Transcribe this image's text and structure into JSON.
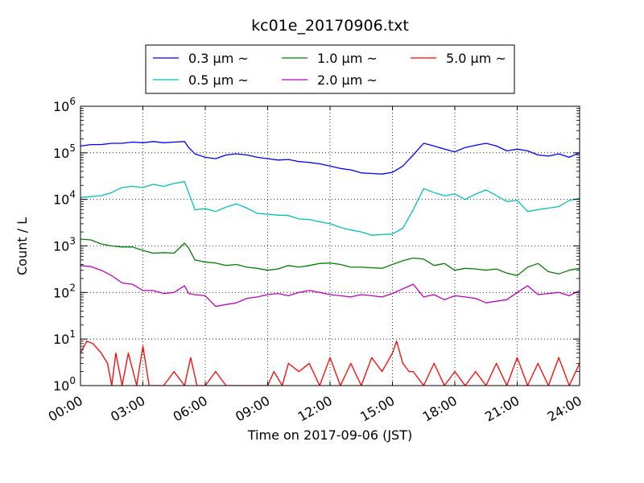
{
  "chart_data": {
    "type": "line",
    "title": "kc01e_20170906.txt",
    "xlabel": "Time on 2017-09-06 (JST)",
    "ylabel": "Count / L",
    "yscale": "log",
    "xlim": [
      0,
      24
    ],
    "ylim": [
      1,
      1000000
    ],
    "grid": true,
    "legend_position": "top",
    "xticks": [
      {
        "value": 0,
        "label": "00:00"
      },
      {
        "value": 3,
        "label": "03:00"
      },
      {
        "value": 6,
        "label": "06:00"
      },
      {
        "value": 9,
        "label": "09:00"
      },
      {
        "value": 12,
        "label": "12:00"
      },
      {
        "value": 15,
        "label": "15:00"
      },
      {
        "value": 18,
        "label": "18:00"
      },
      {
        "value": 21,
        "label": "21:00"
      },
      {
        "value": 24,
        "label": "24:00"
      }
    ],
    "yticks": [
      {
        "value": 1,
        "base": "10",
        "exp": "0"
      },
      {
        "value": 10,
        "base": "10",
        "exp": "1"
      },
      {
        "value": 100,
        "base": "10",
        "exp": "2"
      },
      {
        "value": 1000,
        "base": "10",
        "exp": "3"
      },
      {
        "value": 10000,
        "base": "10",
        "exp": "4"
      },
      {
        "value": 100000,
        "base": "10",
        "exp": "5"
      },
      {
        "value": 1000000,
        "base": "10",
        "exp": "6"
      }
    ],
    "series": [
      {
        "name": "0.3 μm ~",
        "color": "#0000ff",
        "x": [
          0,
          0.5,
          1,
          1.5,
          2,
          2.5,
          3,
          3.5,
          4,
          4.5,
          5,
          5.2,
          5.5,
          6,
          6.5,
          7,
          7.5,
          8,
          8.5,
          9,
          9.5,
          10,
          10.5,
          11,
          11.5,
          12,
          12.5,
          13,
          13.5,
          14,
          14.5,
          15,
          15.5,
          16,
          16.5,
          17,
          17.5,
          18,
          18.5,
          19,
          19.5,
          20,
          20.5,
          21,
          21.5,
          22,
          22.5,
          23,
          23.5,
          24
        ],
        "y": [
          140000,
          150000,
          150000,
          160000,
          160000,
          170000,
          165000,
          175000,
          165000,
          170000,
          175000,
          130000,
          95000,
          80000,
          75000,
          90000,
          95000,
          90000,
          80000,
          75000,
          70000,
          72000,
          65000,
          62000,
          58000,
          52000,
          46000,
          43000,
          37000,
          36000,
          35000,
          38000,
          52000,
          90000,
          160000,
          140000,
          120000,
          105000,
          130000,
          145000,
          160000,
          140000,
          110000,
          120000,
          110000,
          90000,
          85000,
          95000,
          80000,
          100000
        ]
      },
      {
        "name": "0.5 μm ~",
        "color": "#00bfbf",
        "x": [
          0,
          0.5,
          1,
          1.5,
          2,
          2.5,
          3,
          3.5,
          4,
          4.5,
          5,
          5.2,
          5.5,
          6,
          6.5,
          7,
          7.5,
          8,
          8.5,
          9,
          9.5,
          10,
          10.5,
          11,
          11.5,
          12,
          12.5,
          13,
          13.5,
          14,
          14.5,
          15,
          15.5,
          16,
          16.5,
          17,
          17.5,
          18,
          18.5,
          19,
          19.5,
          20,
          20.5,
          21,
          21.5,
          22,
          22.5,
          23,
          23.5,
          24
        ],
        "y": [
          11000,
          11500,
          12000,
          14000,
          18000,
          19000,
          18000,
          21000,
          19000,
          22000,
          24000,
          14000,
          6000,
          6300,
          5500,
          6800,
          8000,
          6500,
          5000,
          4800,
          4600,
          4500,
          3800,
          3700,
          3300,
          3000,
          2500,
          2200,
          2000,
          1700,
          1750,
          1800,
          2400,
          6000,
          17000,
          14000,
          12000,
          13000,
          10000,
          13000,
          16000,
          12000,
          9000,
          9500,
          5500,
          6000,
          6500,
          7000,
          9500,
          10500
        ]
      },
      {
        "name": "1.0 μm ~",
        "color": "#008000",
        "x": [
          0,
          0.5,
          1,
          1.5,
          2,
          2.5,
          3,
          3.5,
          4,
          4.5,
          5,
          5.2,
          5.5,
          6,
          6.5,
          7,
          7.5,
          8,
          8.5,
          9,
          9.5,
          10,
          10.5,
          11,
          11.5,
          12,
          12.5,
          13,
          13.5,
          14,
          14.5,
          15,
          15.5,
          16,
          16.5,
          17,
          17.5,
          18,
          18.5,
          19,
          19.5,
          20,
          20.5,
          21,
          21.5,
          22,
          22.5,
          23,
          23.5,
          24
        ],
        "y": [
          1400,
          1350,
          1100,
          1000,
          950,
          950,
          800,
          700,
          720,
          700,
          1150,
          900,
          500,
          450,
          430,
          380,
          400,
          350,
          330,
          300,
          320,
          380,
          350,
          380,
          420,
          430,
          400,
          350,
          350,
          340,
          330,
          400,
          480,
          550,
          520,
          380,
          420,
          300,
          330,
          320,
          300,
          320,
          260,
          230,
          350,
          420,
          280,
          250,
          300,
          330
        ]
      },
      {
        "name": "2.0 μm ~",
        "color": "#bf00bf",
        "x": [
          0,
          0.5,
          1,
          1.5,
          2,
          2.5,
          3,
          3.5,
          4,
          4.5,
          5,
          5.2,
          5.5,
          6,
          6.5,
          7,
          7.5,
          8,
          8.5,
          9,
          9.5,
          10,
          10.5,
          11,
          11.5,
          12,
          12.5,
          13,
          13.5,
          14,
          14.5,
          15,
          15.5,
          16,
          16.5,
          17,
          17.5,
          18,
          18.5,
          19,
          19.5,
          20,
          20.5,
          21,
          21.5,
          22,
          22.5,
          23,
          23.5,
          24
        ],
        "y": [
          380,
          360,
          300,
          230,
          160,
          150,
          110,
          110,
          95,
          100,
          140,
          95,
          90,
          85,
          50,
          55,
          60,
          75,
          80,
          90,
          95,
          85,
          100,
          110,
          100,
          90,
          85,
          80,
          90,
          85,
          80,
          95,
          120,
          150,
          80,
          90,
          70,
          85,
          80,
          75,
          60,
          65,
          70,
          100,
          140,
          90,
          95,
          100,
          85,
          110
        ]
      },
      {
        "name": "5.0 μm ~",
        "color": "#ff0000",
        "x": [
          0,
          0.3,
          0.6,
          1,
          1.3,
          1.5,
          1.7,
          2,
          2.3,
          2.7,
          3,
          3.3,
          3.5,
          3.8,
          4,
          4.5,
          5,
          5.3,
          5.6,
          6,
          6.5,
          7,
          7.5,
          8,
          8.5,
          9,
          9.3,
          9.7,
          10,
          10.5,
          11,
          11.5,
          12,
          12.5,
          13,
          13.5,
          14,
          14.5,
          15,
          15.2,
          15.5,
          15.8,
          16,
          16.5,
          17,
          17.5,
          18,
          18.5,
          19,
          19.5,
          20,
          20.5,
          21,
          21.5,
          22,
          22.5,
          23,
          23.5,
          24
        ],
        "y": [
          5,
          9,
          8,
          5,
          3,
          1,
          5,
          1,
          5,
          1,
          7,
          1,
          1,
          1,
          1,
          2,
          1,
          4,
          1,
          1,
          2,
          1,
          1,
          1,
          1,
          1,
          2,
          1,
          3,
          2,
          3,
          1,
          4,
          1,
          3,
          1,
          4,
          2,
          5,
          9,
          3,
          2,
          2,
          1,
          3,
          1,
          2,
          1,
          2,
          1,
          3,
          1,
          4,
          1,
          3,
          1,
          4,
          1,
          3
        ]
      }
    ]
  }
}
